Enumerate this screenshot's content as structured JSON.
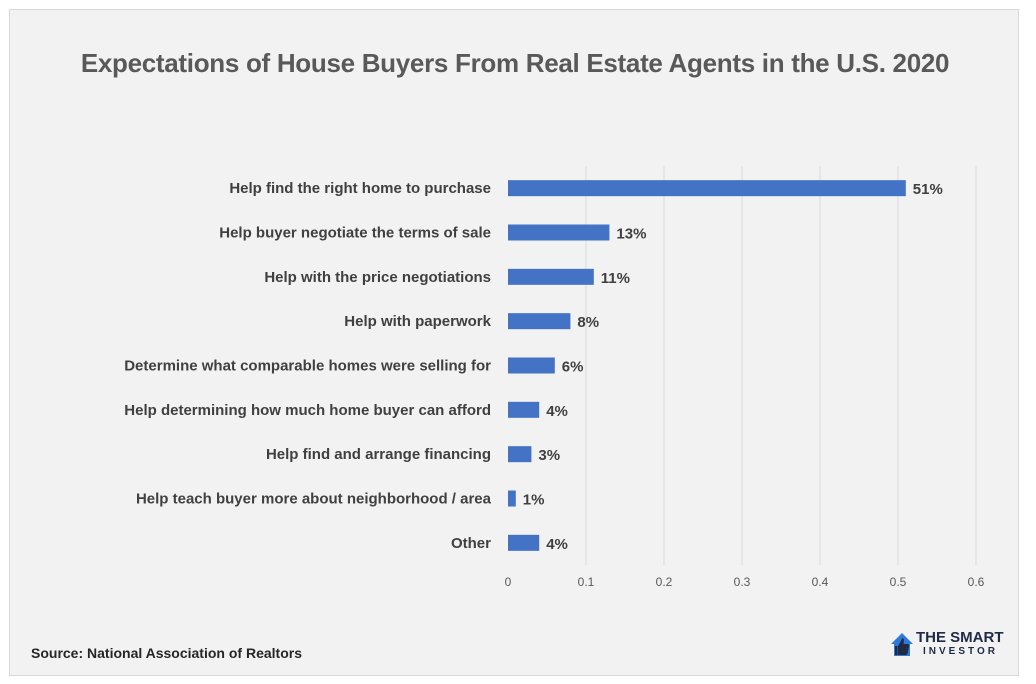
{
  "chart_data": {
    "type": "bar",
    "orientation": "horizontal",
    "title": "Expectations of House Buyers From Real Estate Agents in the U.S. 2020",
    "categories": [
      "Help find the right home to purchase",
      "Help buyer negotiate the terms of sale",
      "Help with the price negotiations",
      "Help with paperwork",
      "Determine what comparable homes were selling for",
      "Help determining how much home buyer can afford",
      "Help find and arrange financing",
      "Help teach buyer more about neighborhood / area",
      "Other"
    ],
    "values": [
      0.51,
      0.13,
      0.11,
      0.08,
      0.06,
      0.04,
      0.03,
      0.01,
      0.04
    ],
    "data_labels": [
      "51%",
      "13%",
      "11%",
      "8%",
      "6%",
      "4%",
      "3%",
      "1%",
      "4%"
    ],
    "xlim": [
      0,
      0.6
    ],
    "xticks": [
      "0",
      "0.1",
      "0.2",
      "0.3",
      "0.4",
      "0.5",
      "0.6"
    ],
    "grid": "vertical",
    "bar_color": "#4472c4",
    "xlabel": "",
    "ylabel": ""
  },
  "footer": {
    "source": "Source: National Association of Realtors",
    "logo_line1": "THE SMART",
    "logo_line2": "INVESTOR",
    "logo_icon": "thumbs-up-house-icon"
  }
}
